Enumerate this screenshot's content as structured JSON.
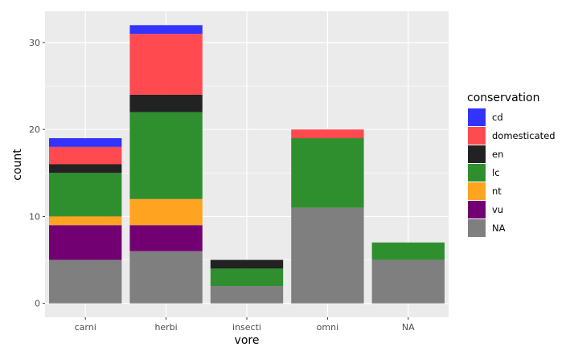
{
  "chart_data": {
    "type": "bar",
    "stacked": true,
    "categories": [
      "carni",
      "herbi",
      "insecti",
      "omni",
      "NA"
    ],
    "series": [
      {
        "name": "cd",
        "color": "#3333ff",
        "values": [
          1,
          1,
          0,
          0,
          0
        ]
      },
      {
        "name": "domesticated",
        "color": "#ff4a4f",
        "values": [
          2,
          7,
          0,
          1,
          0
        ]
      },
      {
        "name": "en",
        "color": "#222222",
        "values": [
          1,
          2,
          1,
          0,
          0
        ]
      },
      {
        "name": "lc",
        "color": "#2f8f2f",
        "values": [
          5,
          10,
          2,
          8,
          2
        ]
      },
      {
        "name": "nt",
        "color": "#ffa321",
        "values": [
          1,
          3,
          0,
          0,
          0
        ]
      },
      {
        "name": "vu",
        "color": "#730073",
        "values": [
          4,
          3,
          0,
          0,
          0
        ]
      },
      {
        "name": "NA",
        "color": "#7f7f7f",
        "values": [
          5,
          6,
          2,
          11,
          5
        ]
      }
    ],
    "xlabel": "vore",
    "ylabel": "count",
    "ylim": [
      -1.6,
      33.6
    ],
    "yticks": [
      0,
      10,
      20,
      30
    ],
    "grid": true,
    "legend": {
      "title": "conservation",
      "position": "right"
    }
  }
}
